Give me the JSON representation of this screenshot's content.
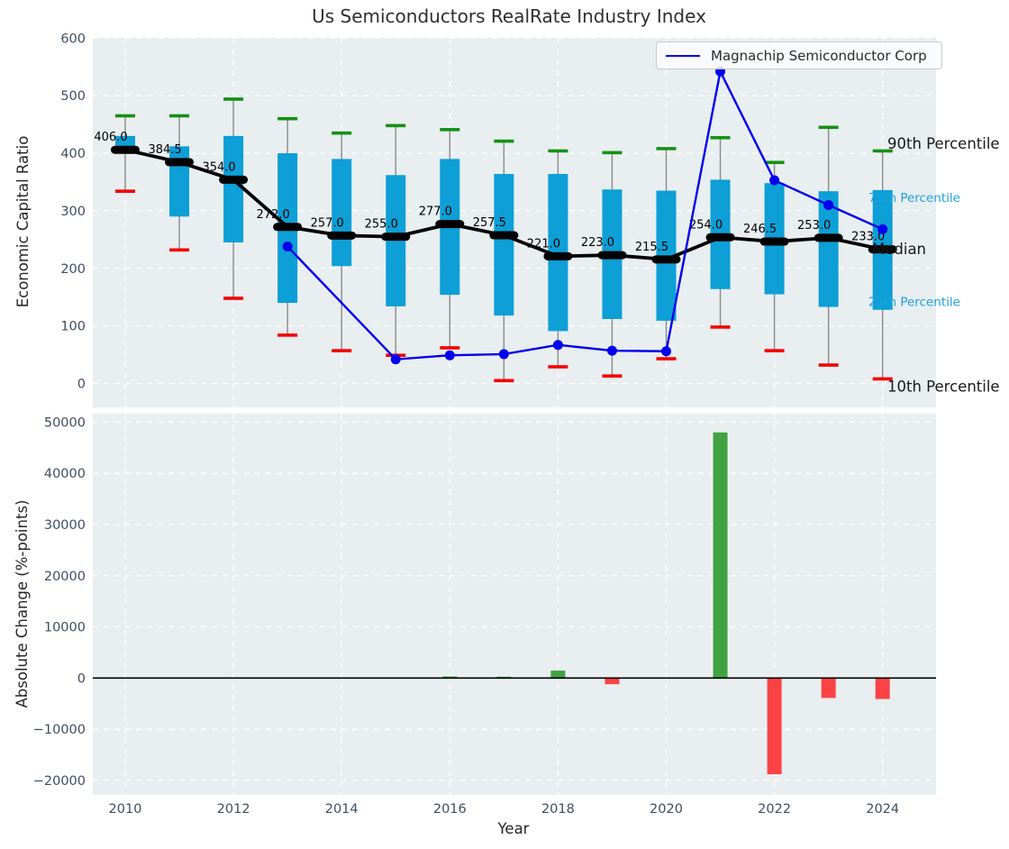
{
  "title": "Us Semiconductors RealRate Industry Index",
  "legend": {
    "label": "Magnachip Semiconductor Corp"
  },
  "colors": {
    "axes_bg": "#e9eef0",
    "grid": "#ffffff",
    "box": "#0d9fd6",
    "percentile_text": "#1ba3dc",
    "cap_green": "#149114",
    "cap_red": "#f50000",
    "whisker": "#8a8a8a",
    "median": "#000000",
    "company_line": "#0000ee",
    "bar_pos": "#41a241",
    "bar_neg": "#fb4346",
    "tick_text": "#3f4d63",
    "title_text": "#2f2f2f"
  },
  "chart_data": [
    {
      "type": "boxwhisker+line",
      "title": "Us Semiconductors RealRate Industry Index",
      "ylabel": "Economic Capital Ratio",
      "ylim": [
        -41,
        600
      ],
      "yticks": [
        0,
        100,
        200,
        300,
        400,
        500,
        600
      ],
      "xticks": [
        2010,
        2012,
        2014,
        2016,
        2018,
        2020,
        2022,
        2024
      ],
      "grid": true,
      "legend_position": "upper right",
      "years": [
        2010,
        2011,
        2012,
        2013,
        2014,
        2015,
        2016,
        2017,
        2018,
        2019,
        2020,
        2021,
        2022,
        2023,
        2024
      ],
      "series": [
        {
          "name": "90th Percentile",
          "values": [
            465,
            465,
            494,
            460,
            435,
            448,
            441,
            421,
            404,
            401,
            408,
            427,
            384,
            445,
            404
          ]
        },
        {
          "name": "75th Percentile",
          "values": [
            430,
            412,
            430,
            400,
            390,
            362,
            390,
            364,
            364,
            337,
            335,
            354,
            348,
            334,
            336
          ]
        },
        {
          "name": "Median",
          "values": [
            406.0,
            384.5,
            354.0,
            272.0,
            257.0,
            255.0,
            277.0,
            257.5,
            221.0,
            223.0,
            215.5,
            254.0,
            246.5,
            253.0,
            233.0
          ]
        },
        {
          "name": "25th Percentile",
          "values": [
            400,
            290,
            245,
            140,
            204,
            134,
            154,
            118,
            91,
            112,
            109,
            164,
            155,
            133,
            128
          ]
        },
        {
          "name": "10th Percentile",
          "values": [
            334,
            232,
            148,
            84,
            57,
            49,
            62,
            5,
            29,
            13,
            43,
            98,
            57,
            32,
            8
          ]
        },
        {
          "name": "Magnachip Semiconductor Corp",
          "values": [
            null,
            null,
            null,
            238,
            null,
            42,
            49,
            51,
            67,
            57,
            56,
            542,
            353,
            310,
            268
          ]
        }
      ],
      "right_labels": [
        {
          "text": "90th Percentile",
          "anchor_value": 417,
          "style": "dark",
          "size": 16.5,
          "x": 985
        },
        {
          "text": "75th Percentile",
          "anchor_value": 323,
          "style": "blue",
          "size": 13.5,
          "x": 964
        },
        {
          "text": "Median",
          "anchor_value": 234,
          "style": "dark",
          "size": 16.5,
          "x": 968
        },
        {
          "text": "25th Percentile",
          "anchor_value": 142,
          "style": "blue",
          "size": 13.5,
          "x": 964
        },
        {
          "text": "10th Percentile",
          "anchor_value": -5,
          "style": "dark",
          "size": 16.5,
          "x": 985
        }
      ]
    },
    {
      "type": "bar",
      "ylabel": "Absolute Change (%-points)",
      "xlabel": "Year",
      "ylim": [
        -22800,
        51600
      ],
      "yticks": [
        -20000,
        -10000,
        0,
        10000,
        20000,
        30000,
        40000,
        50000
      ],
      "xticks": [
        2010,
        2012,
        2014,
        2016,
        2018,
        2020,
        2022,
        2024
      ],
      "grid": true,
      "years": [
        2010,
        2011,
        2012,
        2013,
        2014,
        2015,
        2016,
        2017,
        2018,
        2019,
        2020,
        2021,
        2022,
        2023,
        2024
      ],
      "values": [
        0,
        0,
        0,
        0,
        0,
        0,
        300,
        250,
        1450,
        -1200,
        0,
        48000,
        -18800,
        -3900,
        -4100
      ]
    }
  ]
}
